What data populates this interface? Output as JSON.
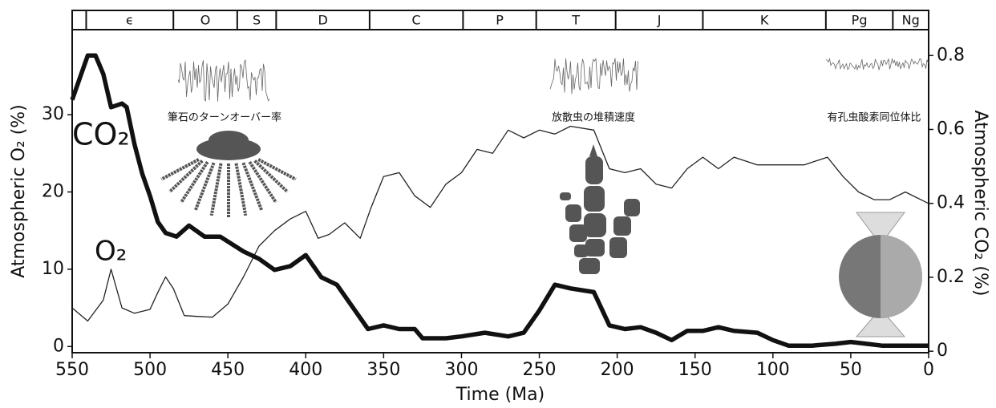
{
  "chart_data": {
    "type": "line",
    "x_label": "Time (Ma)",
    "y_label": "Atmospheric O₂ (%)",
    "y2_label": "Atmospheric CO₂ (%)",
    "xlim": [
      550,
      0
    ],
    "xticks": [
      550,
      500,
      450,
      400,
      350,
      300,
      250,
      200,
      150,
      100,
      50,
      0
    ],
    "ylim": [
      -0.8,
      41
    ],
    "yticks": [
      0,
      10,
      20,
      30
    ],
    "y2lim": [
      -0.004,
      0.87
    ],
    "y2ticks": [
      0,
      0.2,
      0.4,
      0.6,
      0.8
    ],
    "periods": {
      "labels": [
        null,
        "ϵ",
        "O",
        "S",
        "D",
        "C",
        "P",
        "T",
        "J",
        "K",
        "Pg",
        "Ng"
      ],
      "boundaries": [
        550,
        541,
        485,
        444,
        419,
        359,
        299,
        252,
        201,
        145,
        66,
        23,
        0
      ]
    },
    "annotations": [
      "筆石のターンオーバー率",
      "放散虫の堆積速度",
      "有孔虫酸素同位体比"
    ],
    "series": [
      {
        "name": "O₂",
        "color": "#222222",
        "x": [
          550,
          540,
          530,
          525,
          518,
          510,
          500,
          495,
          490,
          485,
          478,
          470,
          460,
          450,
          440,
          430,
          420,
          410,
          400,
          392,
          385,
          375,
          365,
          358,
          350,
          340,
          330,
          320,
          310,
          300,
          290,
          280,
          270,
          260,
          250,
          240,
          230,
          215,
          205,
          195,
          185,
          175,
          165,
          155,
          145,
          135,
          125,
          110,
          95,
          80,
          65,
          55,
          45,
          35,
          25,
          15,
          5,
          0
        ],
        "values": [
          5,
          3.3,
          6,
          10,
          5,
          4.3,
          4.8,
          7,
          9,
          7.5,
          4,
          3.9,
          3.8,
          5.5,
          9,
          13,
          15,
          16.5,
          17.5,
          14,
          14.5,
          16,
          14,
          18,
          22,
          22.5,
          19.5,
          18,
          21,
          22.5,
          25.5,
          25,
          28,
          27,
          28,
          27.5,
          28.5,
          28,
          23,
          22.5,
          23,
          21,
          20.5,
          23,
          24.5,
          23,
          24.5,
          23.5,
          23.5,
          23.5,
          24.5,
          22,
          20,
          19,
          19,
          20,
          19,
          18.5
        ]
      },
      {
        "name": "CO₂",
        "color": "#111111",
        "axis": "y2",
        "x": [
          550,
          545,
          540,
          535,
          530,
          525,
          518,
          515,
          510,
          505,
          500,
          495,
          490,
          483,
          475,
          465,
          455,
          440,
          430,
          420,
          410,
          400,
          390,
          380,
          370,
          360,
          350,
          340,
          330,
          325,
          310,
          300,
          285,
          270,
          260,
          250,
          240,
          230,
          215,
          205,
          195,
          185,
          175,
          165,
          155,
          145,
          135,
          125,
          110,
          100,
          90,
          75,
          60,
          50,
          40,
          30,
          15,
          0
        ],
        "values": [
          0.68,
          0.74,
          0.8,
          0.8,
          0.75,
          0.66,
          0.67,
          0.66,
          0.56,
          0.48,
          0.42,
          0.35,
          0.32,
          0.31,
          0.34,
          0.31,
          0.31,
          0.27,
          0.25,
          0.22,
          0.23,
          0.26,
          0.2,
          0.18,
          0.12,
          0.06,
          0.07,
          0.06,
          0.06,
          0.035,
          0.035,
          0.04,
          0.05,
          0.04,
          0.05,
          0.11,
          0.18,
          0.17,
          0.16,
          0.07,
          0.06,
          0.065,
          0.05,
          0.03,
          0.055,
          0.055,
          0.065,
          0.055,
          0.05,
          0.03,
          0.015,
          0.015,
          0.02,
          0.025,
          0.02,
          0.015,
          0.015,
          0.015
        ]
      }
    ]
  }
}
